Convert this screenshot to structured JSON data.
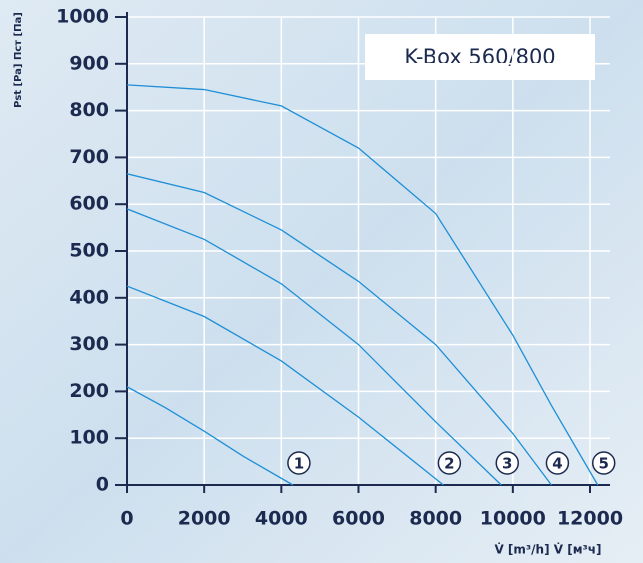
{
  "chart_data": {
    "type": "line",
    "title": "K-Box 560/800",
    "xlabel": "V̇ [m³/h]  V̇ [м³ч]",
    "ylabel": "Pst [Pa]  Пст [Па]",
    "xlim": [
      0,
      12000
    ],
    "ylim": [
      0,
      1000
    ],
    "xticks": [
      0,
      2000,
      4000,
      6000,
      8000,
      10000,
      12000
    ],
    "yticks": [
      0,
      100,
      200,
      300,
      400,
      500,
      600,
      700,
      800,
      900,
      1000
    ],
    "grid": true,
    "series": [
      {
        "name": "1",
        "color": "#1e8fd6",
        "x": [
          0,
          1000,
          2000,
          3000,
          4300
        ],
        "values": [
          210,
          165,
          115,
          62,
          0
        ]
      },
      {
        "name": "2",
        "color": "#1e8fd6",
        "x": [
          0,
          2000,
          4000,
          6000,
          8200
        ],
        "values": [
          425,
          360,
          265,
          145,
          0
        ]
      },
      {
        "name": "3",
        "color": "#1e8fd6",
        "x": [
          0,
          2000,
          4000,
          6000,
          8000,
          9700
        ],
        "values": [
          590,
          525,
          430,
          300,
          135,
          0
        ]
      },
      {
        "name": "4",
        "color": "#1e8fd6",
        "x": [
          0,
          2000,
          4000,
          6000,
          8000,
          10000,
          11000
        ],
        "values": [
          665,
          625,
          545,
          435,
          300,
          110,
          0
        ]
      },
      {
        "name": "5",
        "color": "#1e8fd6",
        "x": [
          0,
          2000,
          4000,
          6000,
          8000,
          10000,
          11000,
          12200
        ],
        "values": [
          855,
          845,
          810,
          720,
          580,
          320,
          170,
          0
        ]
      }
    ]
  }
}
